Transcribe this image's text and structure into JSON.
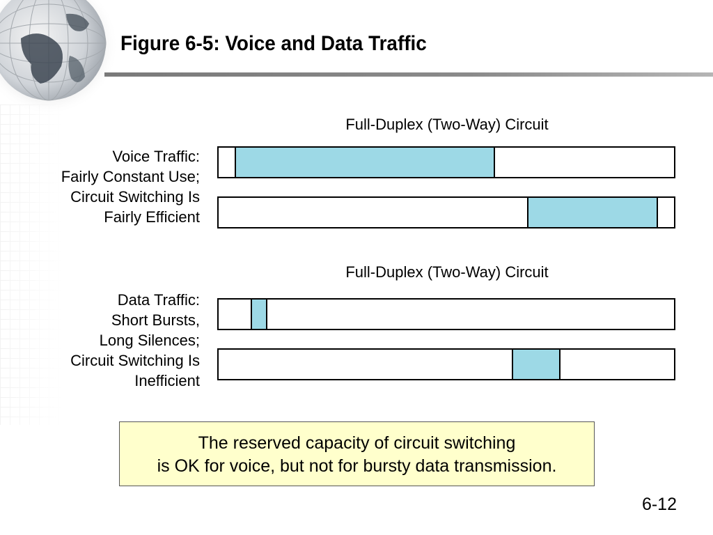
{
  "slide": {
    "title": "Figure 6-5: Voice and Data Traffic",
    "page_number": "6-12"
  },
  "colors": {
    "segment_fill": "#9dd9e6",
    "callout_fill": "#ffffcc",
    "title_rule": "#808080"
  },
  "voice": {
    "circuit_label": "Full-Duplex (Two-Way) Circuit",
    "label_lines": [
      "Voice Traffic:",
      "Fairly Constant Use;",
      "Circuit Switching Is",
      "Fairly Efficient"
    ],
    "channels": [
      {
        "name": "voice-channel-1",
        "start": 0.035,
        "end": 0.607
      },
      {
        "name": "voice-channel-2",
        "start": 0.678,
        "end": 0.965
      }
    ]
  },
  "data": {
    "circuit_label": "Full-Duplex (Two-Way) Circuit",
    "label_lines": [
      "Data Traffic:",
      "Short Bursts,",
      "Long Silences;",
      "Circuit Switching Is",
      "Inefficient"
    ],
    "channels": [
      {
        "name": "data-channel-1",
        "start": 0.07,
        "end": 0.107
      },
      {
        "name": "data-channel-2",
        "start": 0.643,
        "end": 0.751
      }
    ]
  },
  "callout": {
    "line1": "The reserved capacity of circuit switching",
    "line2": "is OK for voice, but not for bursty data transmission."
  }
}
